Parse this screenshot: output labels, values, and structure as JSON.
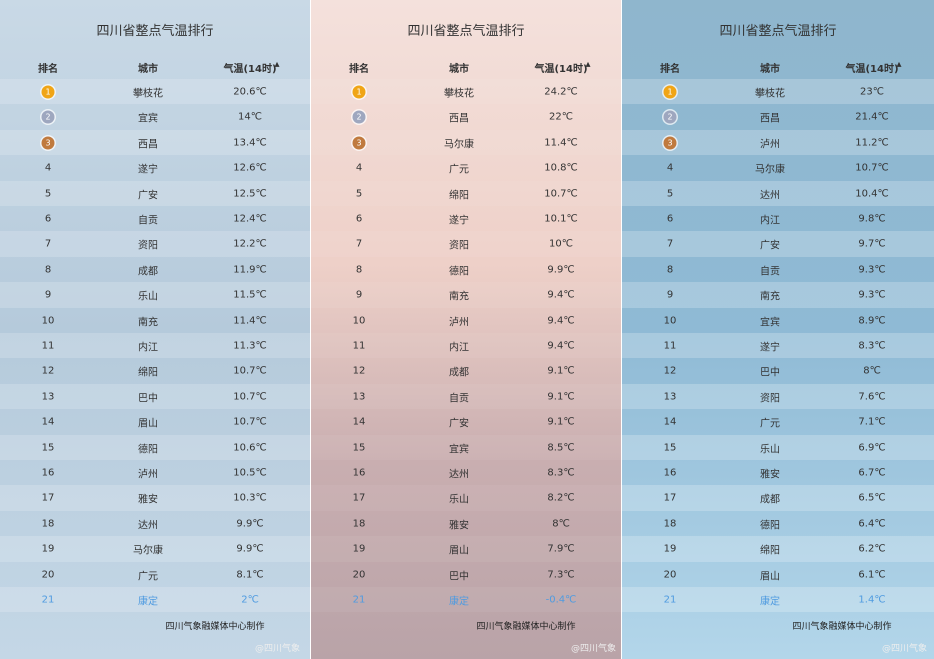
{
  "panels": [
    {
      "title": "四川省整点气温排行",
      "headers": [
        "排名",
        "城市",
        "气温(14时)"
      ],
      "rows": [
        [
          "1",
          "攀枝花",
          "20.6℃"
        ],
        [
          "2",
          "宜宾",
          "14℃"
        ],
        [
          "3",
          "西昌",
          "13.4℃"
        ],
        [
          "4",
          "遂宁",
          "12.6℃"
        ],
        [
          "5",
          "广安",
          "12.5℃"
        ],
        [
          "6",
          "自贡",
          "12.4℃"
        ],
        [
          "7",
          "资阳",
          "12.2℃"
        ],
        [
          "8",
          "成都",
          "11.9℃"
        ],
        [
          "9",
          "乐山",
          "11.5℃"
        ],
        [
          "10",
          "南充",
          "11.4℃"
        ],
        [
          "11",
          "内江",
          "11.3℃"
        ],
        [
          "12",
          "绵阳",
          "10.7℃"
        ],
        [
          "13",
          "巴中",
          "10.7℃"
        ],
        [
          "14",
          "眉山",
          "10.7℃"
        ],
        [
          "15",
          "德阳",
          "10.6℃"
        ],
        [
          "16",
          "泸州",
          "10.5℃"
        ],
        [
          "17",
          "雅安",
          "10.3℃"
        ],
        [
          "18",
          "达州",
          "9.9℃"
        ],
        [
          "19",
          "马尔康",
          "9.9℃"
        ],
        [
          "20",
          "广元",
          "8.1℃"
        ],
        [
          "21",
          "康定",
          "2℃"
        ]
      ],
      "footer": "四川气象融媒体中心制作",
      "watermark": "@四川气象"
    },
    {
      "title": "四川省整点气温排行",
      "headers": [
        "排名",
        "城市",
        "气温(14时)"
      ],
      "rows": [
        [
          "1",
          "攀枝花",
          "24.2℃"
        ],
        [
          "2",
          "西昌",
          "22℃"
        ],
        [
          "3",
          "马尔康",
          "11.4℃"
        ],
        [
          "4",
          "广元",
          "10.8℃"
        ],
        [
          "5",
          "绵阳",
          "10.7℃"
        ],
        [
          "6",
          "遂宁",
          "10.1℃"
        ],
        [
          "7",
          "资阳",
          "10℃"
        ],
        [
          "8",
          "德阳",
          "9.9℃"
        ],
        [
          "9",
          "南充",
          "9.4℃"
        ],
        [
          "10",
          "泸州",
          "9.4℃"
        ],
        [
          "11",
          "内江",
          "9.4℃"
        ],
        [
          "12",
          "成都",
          "9.1℃"
        ],
        [
          "13",
          "自贡",
          "9.1℃"
        ],
        [
          "14",
          "广安",
          "9.1℃"
        ],
        [
          "15",
          "宜宾",
          "8.5℃"
        ],
        [
          "16",
          "达州",
          "8.3℃"
        ],
        [
          "17",
          "乐山",
          "8.2℃"
        ],
        [
          "18",
          "雅安",
          "8℃"
        ],
        [
          "19",
          "眉山",
          "7.9℃"
        ],
        [
          "20",
          "巴中",
          "7.3℃"
        ],
        [
          "21",
          "康定",
          "-0.4℃"
        ]
      ],
      "footer": "四川气象融媒体中心制作",
      "watermark": "@四川气象"
    },
    {
      "title": "四川省整点气温排行",
      "headers": [
        "排名",
        "城市",
        "气温(14时)"
      ],
      "rows": [
        [
          "1",
          "攀枝花",
          "23℃"
        ],
        [
          "2",
          "西昌",
          "21.4℃"
        ],
        [
          "3",
          "泸州",
          "11.2℃"
        ],
        [
          "4",
          "马尔康",
          "10.7℃"
        ],
        [
          "5",
          "达州",
          "10.4℃"
        ],
        [
          "6",
          "内江",
          "9.8℃"
        ],
        [
          "7",
          "广安",
          "9.7℃"
        ],
        [
          "8",
          "自贡",
          "9.3℃"
        ],
        [
          "9",
          "南充",
          "9.3℃"
        ],
        [
          "10",
          "宜宾",
          "8.9℃"
        ],
        [
          "11",
          "遂宁",
          "8.3℃"
        ],
        [
          "12",
          "巴中",
          "8℃"
        ],
        [
          "13",
          "资阳",
          "7.6℃"
        ],
        [
          "14",
          "广元",
          "7.1℃"
        ],
        [
          "15",
          "乐山",
          "6.9℃"
        ],
        [
          "16",
          "雅安",
          "6.7℃"
        ],
        [
          "17",
          "成都",
          "6.5℃"
        ],
        [
          "18",
          "德阳",
          "6.4℃"
        ],
        [
          "19",
          "绵阳",
          "6.2℃"
        ],
        [
          "20",
          "眉山",
          "6.1℃"
        ],
        [
          "21",
          "康定",
          "1.4℃"
        ]
      ],
      "footer": "四川气象融媒体中心制作",
      "watermark": "@四川气象"
    }
  ]
}
